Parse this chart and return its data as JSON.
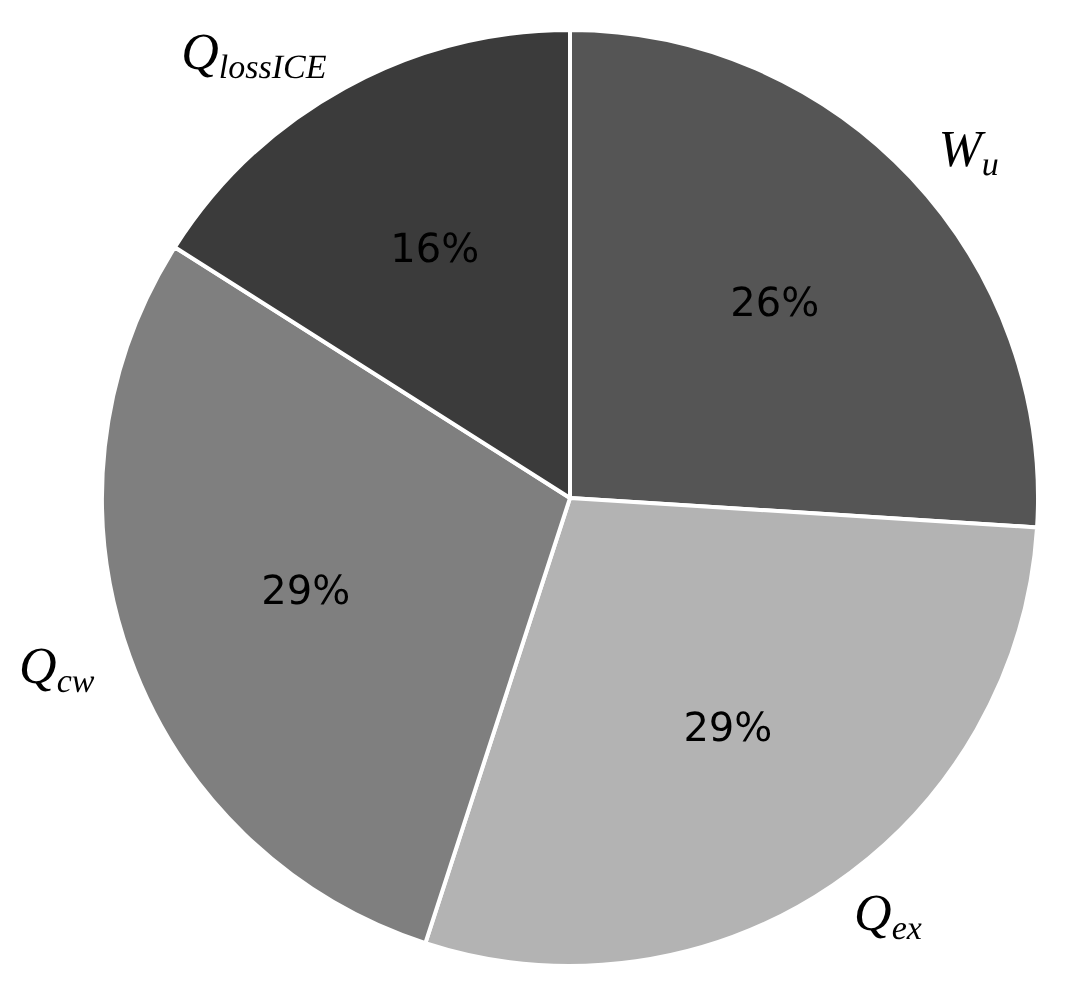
{
  "chart_data": {
    "type": "pie",
    "categories": [
      "W$_{u}$",
      "Q$_{ex}$",
      "Q$_{cw}$",
      "Q$_{lossICE}$"
    ],
    "values": [
      26,
      29,
      29,
      16
    ],
    "value_labels": [
      "26%",
      "29%",
      "29%",
      "16%"
    ],
    "colors": [
      "#555555",
      "#b3b3b3",
      "#7f7f7f",
      "#3b3b3b"
    ],
    "legend": false
  }
}
